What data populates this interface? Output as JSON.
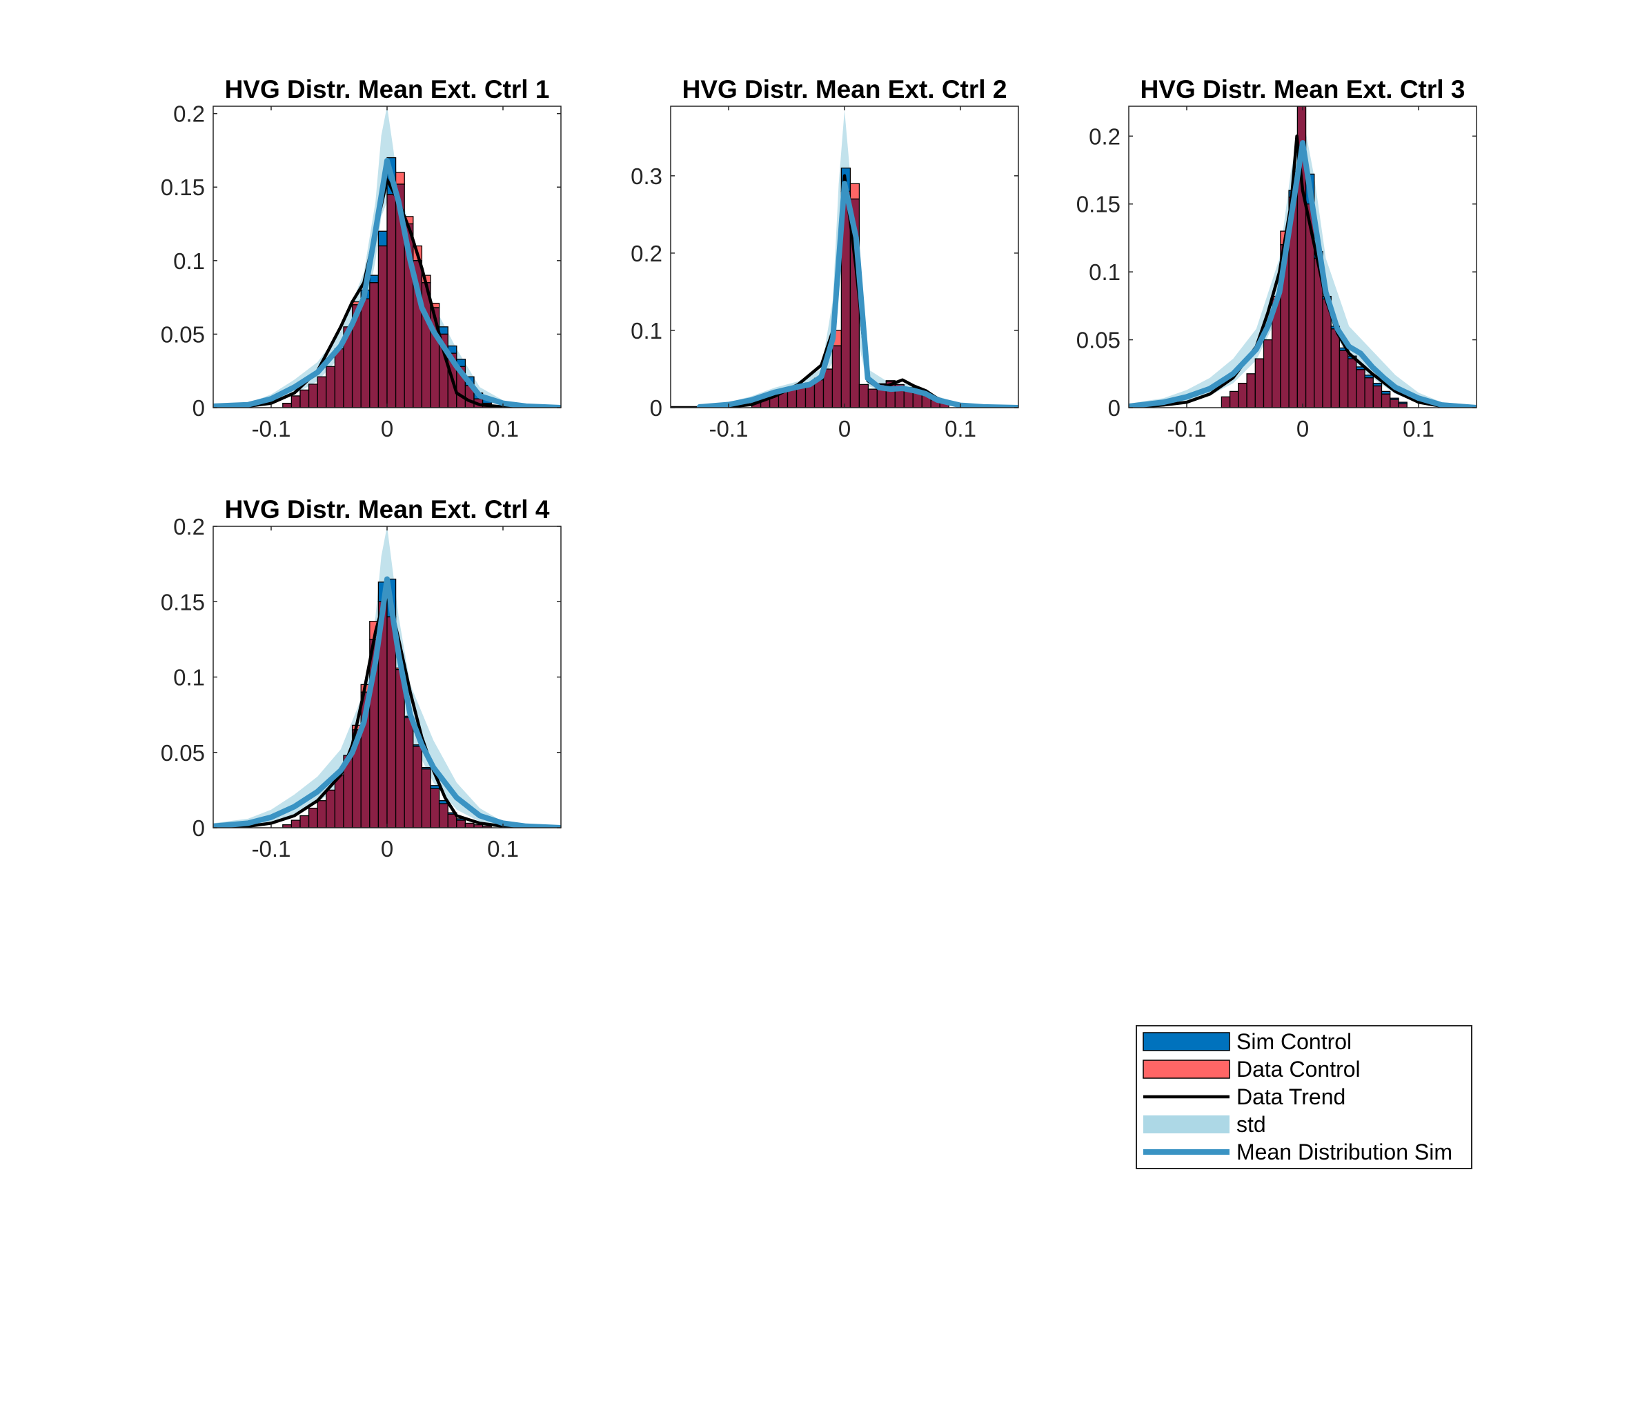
{
  "colors": {
    "sim_control": "#0072BD",
    "data_control": "#FF6666",
    "overlap": "#8B2045",
    "data_trend": "#000000",
    "std_band": "#ADD8E6",
    "mean_sim": "#3A93C3"
  },
  "legend": {
    "placement": "bottom-right",
    "items": [
      {
        "key": "sim_control",
        "label": "Sim Control",
        "kind": "patch"
      },
      {
        "key": "data_control",
        "label": "Data Control",
        "kind": "patch"
      },
      {
        "key": "data_trend",
        "label": "Data Trend",
        "kind": "line"
      },
      {
        "key": "std_band",
        "label": "std",
        "kind": "band"
      },
      {
        "key": "mean_sim",
        "label": "Mean Distribution Sim",
        "kind": "thickline"
      }
    ]
  },
  "chart_data": [
    {
      "type": "bar",
      "title": "HVG Distr. Mean Ext. Ctrl 1",
      "xlim": [
        -0.15,
        0.15
      ],
      "ylim": [
        0,
        0.205
      ],
      "xticks": [
        -0.1,
        0,
        0.1
      ],
      "xtick_labels": [
        "-0.1",
        "0",
        "0.1"
      ],
      "yticks": [
        0,
        0.05,
        0.1,
        0.15,
        0.2
      ],
      "ytick_labels": [
        "0",
        "0.05",
        "0.1",
        "0.15",
        "0.2"
      ],
      "bin_edges": [
        -0.09,
        0.09
      ],
      "sim_control": [
        0.003,
        0.008,
        0.012,
        0.016,
        0.021,
        0.028,
        0.04,
        0.055,
        0.07,
        0.08,
        0.09,
        0.12,
        0.17,
        0.152,
        0.125,
        0.1,
        0.085,
        0.068,
        0.055,
        0.042,
        0.033,
        0.021,
        0.01,
        0.006
      ],
      "data_control": [
        0.003,
        0.008,
        0.012,
        0.016,
        0.021,
        0.028,
        0.04,
        0.055,
        0.072,
        0.074,
        0.085,
        0.11,
        0.145,
        0.16,
        0.13,
        0.11,
        0.09,
        0.071,
        0.05,
        0.037,
        0.028,
        0.015,
        0.006,
        0.003
      ],
      "data_trend": {
        "x": [
          -0.15,
          -0.12,
          -0.1,
          -0.08,
          -0.06,
          -0.04,
          -0.03,
          -0.02,
          -0.01,
          0,
          0.01,
          0.02,
          0.03,
          0.04,
          0.05,
          0.06,
          0.07,
          0.08,
          0.1,
          0.12,
          0.15
        ],
        "y": [
          0,
          0.001,
          0.003,
          0.01,
          0.025,
          0.055,
          0.072,
          0.085,
          0.12,
          0.155,
          0.14,
          0.12,
          0.095,
          0.065,
          0.035,
          0.01,
          0.005,
          0.002,
          0.0005,
          0,
          0
        ]
      },
      "mean_sim": {
        "x": [
          -0.15,
          -0.12,
          -0.1,
          -0.08,
          -0.06,
          -0.05,
          -0.04,
          -0.03,
          -0.02,
          -0.01,
          0,
          0.01,
          0.02,
          0.03,
          0.04,
          0.05,
          0.06,
          0.07,
          0.08,
          0.1,
          0.12,
          0.15
        ],
        "y": [
          0.001,
          0.002,
          0.006,
          0.014,
          0.024,
          0.033,
          0.042,
          0.057,
          0.075,
          0.12,
          0.168,
          0.14,
          0.1,
          0.068,
          0.052,
          0.04,
          0.028,
          0.018,
          0.008,
          0.003,
          0.001,
          0
        ]
      },
      "std": {
        "x": [
          -0.15,
          -0.12,
          -0.1,
          -0.08,
          -0.06,
          -0.04,
          -0.02,
          -0.01,
          -0.005,
          0,
          0.005,
          0.01,
          0.02,
          0.04,
          0.06,
          0.08,
          0.1,
          0.12,
          0.15
        ],
        "lower": [
          0,
          0.001,
          0.003,
          0.009,
          0.018,
          0.035,
          0.06,
          0.1,
          0.13,
          0.14,
          0.125,
          0.11,
          0.085,
          0.045,
          0.022,
          0.006,
          0.002,
          0.0005,
          0
        ],
        "upper": [
          0.002,
          0.003,
          0.009,
          0.019,
          0.031,
          0.052,
          0.092,
          0.14,
          0.185,
          0.205,
          0.178,
          0.15,
          0.122,
          0.07,
          0.04,
          0.014,
          0.005,
          0.002,
          0.001
        ]
      }
    },
    {
      "type": "bar",
      "title": "HVG Distr. Mean Ext. Ctrl 2",
      "xlim": [
        -0.15,
        0.15
      ],
      "ylim": [
        0,
        0.39
      ],
      "xticks": [
        -0.1,
        0,
        0.1
      ],
      "xtick_labels": [
        "-0.1",
        "0",
        "0.1"
      ],
      "yticks": [
        0,
        0.1,
        0.2,
        0.3
      ],
      "ytick_labels": [
        "0",
        "0.1",
        "0.2",
        "0.3"
      ],
      "bin_edges": [
        -0.08,
        0.09
      ],
      "sim_control": [
        0.008,
        0.012,
        0.018,
        0.022,
        0.026,
        0.029,
        0.032,
        0.038,
        0.05,
        0.08,
        0.31,
        0.27,
        0.03,
        0.024,
        0.03,
        0.034,
        0.03,
        0.026,
        0.022,
        0.016,
        0.01,
        0.006
      ],
      "data_control": [
        0.008,
        0.012,
        0.018,
        0.022,
        0.026,
        0.029,
        0.032,
        0.036,
        0.05,
        0.1,
        0.28,
        0.29,
        0.03,
        0.024,
        0.031,
        0.035,
        0.03,
        0.026,
        0.022,
        0.016,
        0.01,
        0.006
      ],
      "data_trend": {
        "x": [
          -0.15,
          -0.12,
          -0.1,
          -0.08,
          -0.06,
          -0.04,
          -0.02,
          -0.01,
          0,
          0.01,
          0.02,
          0.03,
          0.04,
          0.05,
          0.06,
          0.07,
          0.08,
          0.1,
          0.12,
          0.15
        ],
        "y": [
          0,
          0,
          0.001,
          0.004,
          0.015,
          0.03,
          0.055,
          0.1,
          0.3,
          0.18,
          0.035,
          0.025,
          0.03,
          0.036,
          0.028,
          0.022,
          0.012,
          0.002,
          0,
          0
        ]
      },
      "mean_sim": {
        "x": [
          -0.125,
          -0.1,
          -0.08,
          -0.06,
          -0.04,
          -0.03,
          -0.02,
          -0.01,
          0,
          0.01,
          0.02,
          0.03,
          0.04,
          0.05,
          0.06,
          0.07,
          0.08,
          0.1,
          0.12,
          0.15
        ],
        "y": [
          0.001,
          0.004,
          0.01,
          0.02,
          0.027,
          0.03,
          0.04,
          0.09,
          0.29,
          0.22,
          0.038,
          0.026,
          0.024,
          0.025,
          0.022,
          0.018,
          0.01,
          0.003,
          0.001,
          0
        ]
      },
      "std": {
        "x": [
          -0.125,
          -0.1,
          -0.08,
          -0.06,
          -0.04,
          -0.02,
          -0.01,
          -0.005,
          0,
          0.005,
          0.01,
          0.02,
          0.04,
          0.06,
          0.08,
          0.1,
          0.12,
          0.15
        ],
        "lower": [
          0,
          0.002,
          0.006,
          0.014,
          0.021,
          0.032,
          0.06,
          0.15,
          0.22,
          0.18,
          0.1,
          0.028,
          0.018,
          0.015,
          0.006,
          0.001,
          0,
          0
        ],
        "upper": [
          0.002,
          0.007,
          0.015,
          0.026,
          0.034,
          0.05,
          0.14,
          0.29,
          0.385,
          0.3,
          0.2,
          0.05,
          0.031,
          0.03,
          0.015,
          0.005,
          0.002,
          0.001
        ]
      }
    },
    {
      "type": "bar",
      "title": "HVG Distr. Mean Ext. Ctrl 3",
      "xlim": [
        -0.15,
        0.15
      ],
      "ylim": [
        0,
        0.222
      ],
      "xticks": [
        -0.1,
        0,
        0.1
      ],
      "xtick_labels": [
        "-0.1",
        "0",
        "0.1"
      ],
      "yticks": [
        0,
        0.05,
        0.1,
        0.15,
        0.2
      ],
      "ytick_labels": [
        "0",
        "0.05",
        "0.1",
        "0.15",
        "0.2"
      ],
      "bin_edges": [
        -0.07,
        0.09
      ],
      "sim_control": [
        0.008,
        0.012,
        0.018,
        0.025,
        0.036,
        0.05,
        0.08,
        0.12,
        0.16,
        0.222,
        0.172,
        0.115,
        0.082,
        0.06,
        0.044,
        0.038,
        0.03,
        0.024,
        0.018,
        0.012,
        0.007,
        0.004
      ],
      "data_control": [
        0.008,
        0.012,
        0.018,
        0.025,
        0.036,
        0.05,
        0.082,
        0.13,
        0.155,
        0.225,
        0.15,
        0.11,
        0.08,
        0.058,
        0.042,
        0.036,
        0.028,
        0.022,
        0.016,
        0.01,
        0.006,
        0.003
      ],
      "data_trend": {
        "x": [
          -0.15,
          -0.12,
          -0.1,
          -0.08,
          -0.06,
          -0.04,
          -0.03,
          -0.02,
          -0.01,
          -0.005,
          0,
          0.01,
          0.02,
          0.03,
          0.04,
          0.06,
          0.08,
          0.1,
          0.12,
          0.15
        ],
        "y": [
          0,
          0.002,
          0.004,
          0.01,
          0.022,
          0.045,
          0.07,
          0.1,
          0.15,
          0.2,
          0.16,
          0.12,
          0.08,
          0.055,
          0.04,
          0.025,
          0.012,
          0.004,
          0.001,
          0
        ]
      },
      "mean_sim": {
        "x": [
          -0.15,
          -0.12,
          -0.1,
          -0.08,
          -0.06,
          -0.04,
          -0.03,
          -0.02,
          -0.01,
          0,
          0.01,
          0.02,
          0.03,
          0.04,
          0.05,
          0.06,
          0.07,
          0.08,
          0.1,
          0.12,
          0.15
        ],
        "y": [
          0.001,
          0.004,
          0.008,
          0.014,
          0.025,
          0.043,
          0.06,
          0.085,
          0.14,
          0.195,
          0.14,
          0.085,
          0.058,
          0.045,
          0.04,
          0.03,
          0.022,
          0.015,
          0.007,
          0.002,
          0
        ]
      },
      "std": {
        "x": [
          -0.15,
          -0.12,
          -0.1,
          -0.08,
          -0.06,
          -0.04,
          -0.02,
          -0.01,
          0,
          0.01,
          0.02,
          0.04,
          0.06,
          0.08,
          0.1,
          0.12,
          0.15
        ],
        "lower": [
          0,
          0.002,
          0.005,
          0.009,
          0.018,
          0.035,
          0.07,
          0.11,
          0.165,
          0.115,
          0.068,
          0.035,
          0.022,
          0.01,
          0.004,
          0.001,
          0
        ],
        "upper": [
          0.003,
          0.007,
          0.013,
          0.022,
          0.036,
          0.058,
          0.11,
          0.175,
          0.215,
          0.17,
          0.11,
          0.06,
          0.042,
          0.024,
          0.011,
          0.004,
          0.002
        ]
      }
    },
    {
      "type": "bar",
      "title": "HVG Distr. Mean Ext. Ctrl 4",
      "xlim": [
        -0.15,
        0.15
      ],
      "ylim": [
        0,
        0.2
      ],
      "xticks": [
        -0.1,
        0,
        0.1
      ],
      "xtick_labels": [
        "-0.1",
        "0",
        "0.1"
      ],
      "yticks": [
        0,
        0.05,
        0.1,
        0.15,
        0.2
      ],
      "ytick_labels": [
        "0",
        "0.05",
        "0.1",
        "0.15",
        "0.2"
      ],
      "bin_edges": [
        -0.09,
        0.09
      ],
      "sim_control": [
        0.002,
        0.005,
        0.008,
        0.013,
        0.018,
        0.025,
        0.035,
        0.048,
        0.065,
        0.09,
        0.125,
        0.163,
        0.165,
        0.105,
        0.074,
        0.055,
        0.04,
        0.028,
        0.018,
        0.01,
        0.006,
        0.003,
        0.002,
        0.001
      ],
      "data_control": [
        0.002,
        0.005,
        0.008,
        0.013,
        0.018,
        0.025,
        0.035,
        0.048,
        0.068,
        0.095,
        0.137,
        0.15,
        0.14,
        0.106,
        0.073,
        0.054,
        0.039,
        0.026,
        0.016,
        0.009,
        0.005,
        0.003,
        0.002,
        0.001
      ],
      "data_trend": {
        "x": [
          -0.15,
          -0.12,
          -0.1,
          -0.08,
          -0.06,
          -0.04,
          -0.03,
          -0.02,
          -0.01,
          0,
          0.01,
          0.02,
          0.03,
          0.04,
          0.05,
          0.06,
          0.08,
          0.1,
          0.12,
          0.15
        ],
        "y": [
          0,
          0.001,
          0.003,
          0.008,
          0.018,
          0.035,
          0.055,
          0.09,
          0.13,
          0.158,
          0.125,
          0.09,
          0.06,
          0.038,
          0.02,
          0.008,
          0.003,
          0.001,
          0,
          0
        ]
      },
      "mean_sim": {
        "x": [
          -0.15,
          -0.12,
          -0.1,
          -0.08,
          -0.06,
          -0.04,
          -0.03,
          -0.02,
          -0.01,
          0,
          0.01,
          0.02,
          0.03,
          0.04,
          0.05,
          0.06,
          0.08,
          0.1,
          0.12,
          0.15
        ],
        "y": [
          0.001,
          0.003,
          0.007,
          0.014,
          0.024,
          0.038,
          0.05,
          0.07,
          0.11,
          0.165,
          0.115,
          0.075,
          0.055,
          0.04,
          0.03,
          0.02,
          0.008,
          0.003,
          0.001,
          0
        ]
      },
      "std": {
        "x": [
          -0.15,
          -0.12,
          -0.1,
          -0.08,
          -0.06,
          -0.04,
          -0.02,
          -0.01,
          -0.005,
          0,
          0.005,
          0.01,
          0.02,
          0.04,
          0.06,
          0.08,
          0.1,
          0.12,
          0.15
        ],
        "lower": [
          0,
          0.001,
          0.004,
          0.009,
          0.017,
          0.028,
          0.055,
          0.09,
          0.115,
          0.13,
          0.115,
          0.095,
          0.06,
          0.03,
          0.012,
          0.004,
          0.001,
          0,
          0
        ],
        "upper": [
          0.003,
          0.006,
          0.012,
          0.022,
          0.034,
          0.052,
          0.09,
          0.14,
          0.18,
          0.2,
          0.17,
          0.14,
          0.095,
          0.058,
          0.03,
          0.013,
          0.004,
          0.002,
          0.001
        ]
      }
    }
  ]
}
